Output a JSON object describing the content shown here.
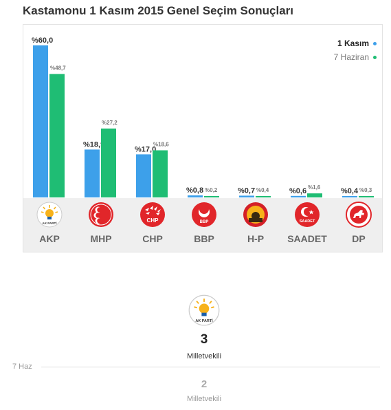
{
  "title": "Kastamonu 1 Kasım 2015 Genel Seçim Sonuçları",
  "legend": {
    "current": "1 Kasım",
    "previous": "7 Haziran"
  },
  "colors": {
    "current": "#3da0ea",
    "previous": "#1fbd74",
    "party_red": "#e1262a",
    "akp_yellow": "#f7b21a",
    "akp_blue": "#1a5ea9"
  },
  "chart_data": {
    "type": "bar",
    "title": "Kastamonu 1 Kasım 2015 Genel Seçim Sonuçları",
    "categories": [
      "AKP",
      "MHP",
      "CHP",
      "BBP",
      "H-P",
      "SAADET",
      "DP"
    ],
    "series": [
      {
        "name": "1 Kasım",
        "values": [
          60.0,
          18.9,
          17.0,
          0.8,
          0.7,
          0.6,
          0.4
        ],
        "labels": [
          "%60,0",
          "%18,9",
          "%17,0",
          "%0,8",
          "%0,7",
          "%0,6",
          "%0,4"
        ]
      },
      {
        "name": "7 Haziran",
        "values": [
          48.7,
          27.2,
          18.6,
          0.2,
          0.4,
          1.6,
          0.3
        ],
        "labels": [
          "%48,7",
          "%27,2",
          "%18,6",
          "%0,2",
          "%0,4",
          "%1,6",
          "%0,3"
        ]
      }
    ],
    "ylim": [
      0,
      60
    ],
    "grid": false,
    "legend_position": "top-right"
  },
  "parties": [
    {
      "name": "AKP",
      "logo": "akp-bulb-logo",
      "logo_text": "AK PARTİ"
    },
    {
      "name": "MHP",
      "logo": "mhp-crescents-logo"
    },
    {
      "name": "CHP",
      "logo": "chp-arrows-logo",
      "logo_text": "CHP"
    },
    {
      "name": "BBP",
      "logo": "bbp-crescent-logo",
      "logo_text": "BBP"
    },
    {
      "name": "H-P",
      "logo": "hp-sun-logo"
    },
    {
      "name": "SAADET",
      "logo": "saadet-crescent-logo",
      "logo_text": "SAADET"
    },
    {
      "name": "DP",
      "logo": "dp-horse-logo"
    }
  ],
  "seats": {
    "winner_logo": "akp-bulb-logo",
    "winner_logo_text": "AK PARTİ",
    "current_count": "3",
    "current_label": "Milletvekili",
    "previous_marker": "7 Haz",
    "previous_count": "2",
    "previous_label": "Milletvekili"
  }
}
